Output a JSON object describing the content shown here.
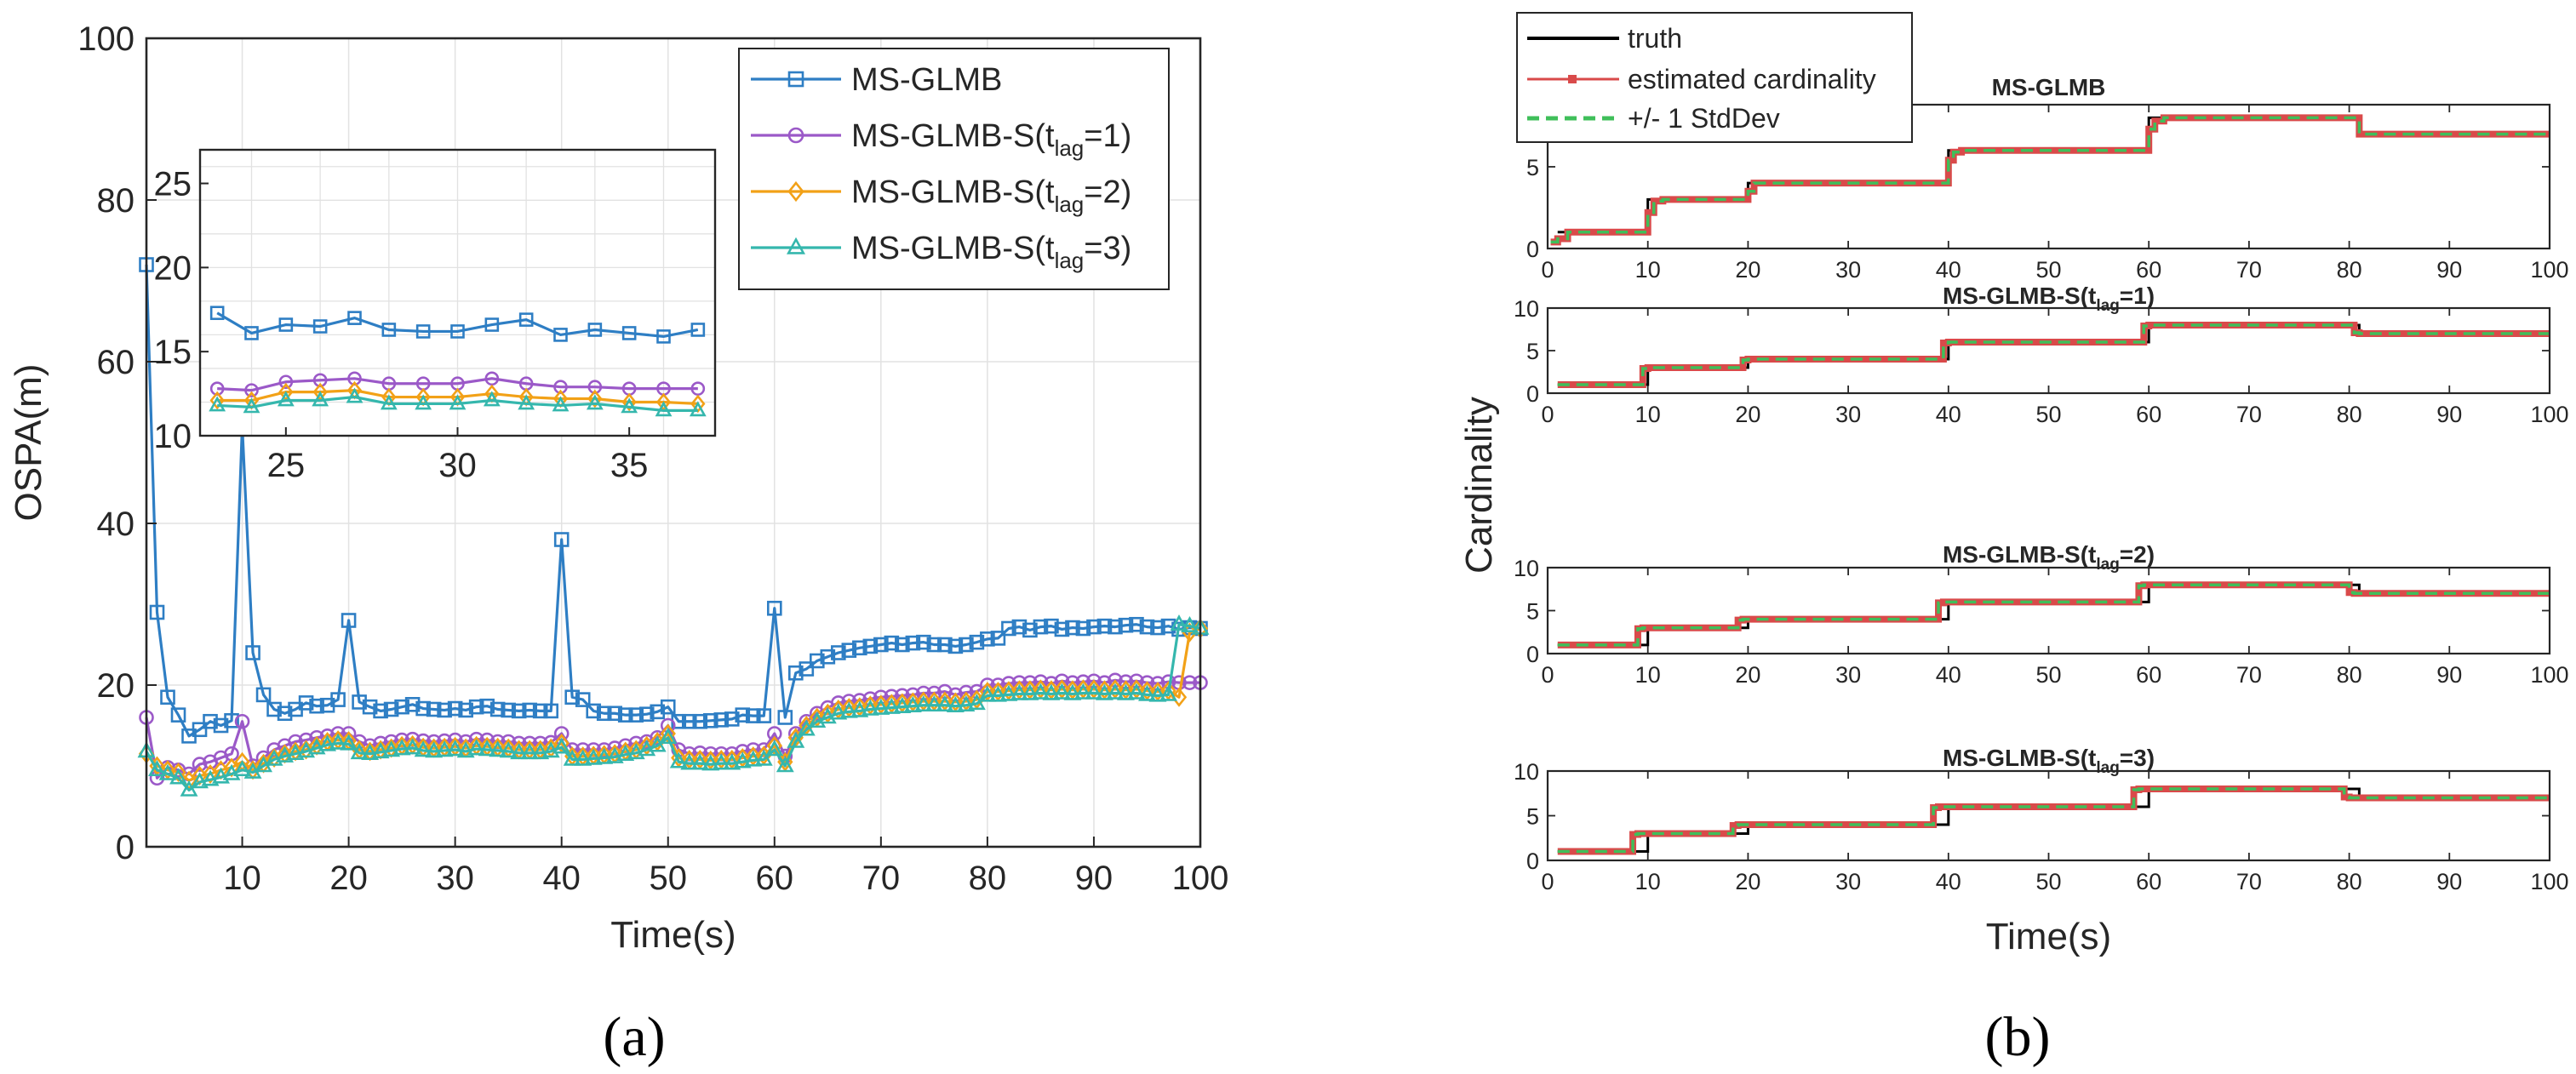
{
  "panel_labels": {
    "a": "(a)",
    "b": "(b)"
  },
  "colors": {
    "ms_glmb": "#2e7ec4",
    "s1": "#9b59c8",
    "s2": "#f2a117",
    "s3": "#35b7ad",
    "truth": "#000000",
    "estimate": "#d94a4a",
    "stddev": "#3fbf5a",
    "grid": "#e2e2e2",
    "axis": "#262626"
  },
  "chart_data": [
    {
      "id": "a-main",
      "type": "line",
      "xlabel": "Time(s)",
      "ylabel": "OSPA(m)",
      "xlim": [
        1,
        100
      ],
      "ylim": [
        0,
        100
      ],
      "xticks": [
        10,
        20,
        30,
        40,
        50,
        60,
        70,
        80,
        90,
        100
      ],
      "yticks": [
        0,
        20,
        40,
        60,
        80,
        100
      ],
      "grid": true,
      "legend_position": "top-right",
      "legend": [
        {
          "main": "MS-GLMB",
          "sub": "",
          "tail": ""
        },
        {
          "main": "MS-GLMB-S(t",
          "sub": "lag",
          "tail": "=1)"
        },
        {
          "main": "MS-GLMB-S(t",
          "sub": "lag",
          "tail": "=2)"
        },
        {
          "main": "MS-GLMB-S(t",
          "sub": "lag",
          "tail": "=3)"
        }
      ],
      "x": [
        1,
        2,
        3,
        4,
        5,
        6,
        7,
        8,
        9,
        10,
        11,
        12,
        13,
        14,
        15,
        16,
        17,
        18,
        19,
        20,
        21,
        22,
        23,
        24,
        25,
        26,
        27,
        28,
        29,
        30,
        31,
        32,
        33,
        34,
        35,
        36,
        37,
        38,
        39,
        40,
        41,
        42,
        43,
        44,
        45,
        46,
        47,
        48,
        49,
        50,
        51,
        52,
        53,
        54,
        55,
        56,
        57,
        58,
        59,
        60,
        61,
        62,
        63,
        64,
        65,
        66,
        67,
        68,
        69,
        70,
        71,
        72,
        73,
        74,
        75,
        76,
        77,
        78,
        79,
        80,
        81,
        82,
        83,
        84,
        85,
        86,
        87,
        88,
        89,
        90,
        91,
        92,
        93,
        94,
        95,
        96,
        97,
        98,
        99,
        100
      ],
      "series": [
        {
          "key": "ms_glmb",
          "marker": "square",
          "values": [
            72,
            29,
            18.5,
            16.3,
            13.7,
            14.5,
            15.5,
            15,
            15.6,
            52,
            24,
            18.8,
            17,
            16.5,
            17,
            17.8,
            17.4,
            17.5,
            18.2,
            28,
            17.9,
            17.3,
            16.8,
            17,
            17.3,
            17.6,
            17.1,
            17,
            16.9,
            17.1,
            16.9,
            17.3,
            17.4,
            17,
            16.9,
            16.8,
            16.9,
            16.8,
            16.8,
            38,
            18.5,
            18.2,
            16.8,
            16.5,
            16.5,
            16.3,
            16.3,
            16.4,
            16.7,
            17.3,
            15.5,
            15.5,
            15.5,
            15.6,
            15.7,
            15.8,
            16.3,
            16.2,
            16.2,
            29.5,
            16,
            21.5,
            22,
            23,
            23.5,
            24,
            24.3,
            24.6,
            24.8,
            25,
            25.2,
            25,
            25.2,
            25.3,
            25,
            25,
            24.8,
            25,
            25.3,
            25.7,
            25.8,
            27,
            27.2,
            26.8,
            27.2,
            27.3,
            26.9,
            27.1,
            27,
            27.2,
            27.3,
            27.2,
            27.4,
            27.5,
            27.2,
            27.1,
            27.3,
            26.9,
            27.1,
            27
          ]
        },
        {
          "key": "s1",
          "marker": "circle",
          "values": [
            16,
            8.5,
            9.8,
            9.5,
            9,
            10.2,
            10.5,
            11,
            11.5,
            15.5,
            10,
            11,
            12,
            12.5,
            13,
            13.2,
            13.5,
            13.7,
            14,
            14,
            13,
            12.5,
            12.8,
            13,
            13.2,
            13.3,
            13.1,
            13,
            13.1,
            13.2,
            13,
            13.3,
            13.2,
            13,
            13,
            12.8,
            12.8,
            12.8,
            12.9,
            14,
            12,
            12,
            12,
            12,
            12.2,
            12.5,
            12.8,
            13,
            13.5,
            15,
            12,
            11.5,
            11.6,
            11.5,
            11.5,
            11.5,
            11.8,
            12,
            12,
            14,
            11.2,
            14,
            15.5,
            16.5,
            17.2,
            17.8,
            18,
            18.1,
            18.3,
            18.5,
            18.6,
            18.7,
            18.8,
            19,
            19,
            19.2,
            18.8,
            19.1,
            19.2,
            20,
            20,
            20.2,
            20.3,
            20.3,
            20.4,
            20.2,
            20.5,
            20.3,
            20.4,
            20.5,
            20.3,
            20.6,
            20.4,
            20.5,
            20.3,
            20.2,
            20.4,
            20.3,
            20.3,
            20.3
          ]
        },
        {
          "key": "s2",
          "marker": "diamond",
          "values": [
            11.5,
            10,
            9.5,
            9.2,
            8.2,
            8.8,
            9,
            9.5,
            9.8,
            10.5,
            9.5,
            10.3,
            11,
            11.5,
            11.8,
            12,
            12.5,
            13,
            13.2,
            13.1,
            12,
            11.8,
            12,
            12.2,
            12.5,
            12.6,
            12.3,
            12.2,
            12.3,
            12.4,
            12.2,
            12.5,
            12.4,
            12.3,
            12.2,
            12,
            12,
            12,
            12.2,
            12.8,
            11.2,
            11.2,
            11.3,
            11.4,
            11.5,
            11.8,
            12,
            12.5,
            13,
            14,
            11,
            10.8,
            10.8,
            10.7,
            10.8,
            10.8,
            11,
            11.2,
            11.3,
            12.5,
            10.5,
            13.5,
            15,
            16,
            16.5,
            17,
            17.2,
            17.3,
            17.5,
            17.6,
            17.7,
            17.8,
            17.9,
            18,
            18,
            18,
            17.9,
            18,
            18.2,
            19.2,
            19.2,
            19.3,
            19.4,
            19.4,
            19.5,
            19.4,
            19.5,
            19.4,
            19.5,
            19.5,
            19.4,
            19.5,
            19.4,
            19.5,
            19.3,
            19.2,
            19.3,
            18.5,
            26.5,
            27
          ]
        },
        {
          "key": "s3",
          "marker": "triangle",
          "values": [
            11.8,
            9.5,
            9,
            8.5,
            7,
            8,
            8.3,
            8.6,
            9,
            9.5,
            9.2,
            10,
            10.8,
            11.2,
            11.5,
            11.8,
            12.2,
            12.6,
            12.8,
            12.7,
            11.6,
            11.5,
            11.7,
            11.9,
            12.1,
            12.2,
            11.9,
            11.8,
            11.9,
            12,
            11.8,
            12.1,
            12,
            11.9,
            11.8,
            11.6,
            11.6,
            11.6,
            11.8,
            12.3,
            10.8,
            10.8,
            10.9,
            11,
            11.1,
            11.4,
            11.6,
            12,
            12.5,
            13.5,
            10.5,
            10.3,
            10.3,
            10.2,
            10.3,
            10.3,
            10.5,
            10.7,
            10.8,
            12,
            10,
            13,
            14.5,
            15.5,
            16,
            16.5,
            16.7,
            16.8,
            17,
            17.1,
            17.2,
            17.3,
            17.4,
            17.5,
            17.5,
            17.5,
            17.4,
            17.5,
            17.7,
            18.7,
            18.7,
            18.8,
            18.9,
            18.9,
            19,
            18.9,
            19,
            18.9,
            19,
            19,
            18.9,
            19,
            18.9,
            19,
            18.8,
            18.7,
            18.8,
            27.5,
            27.3,
            27
          ]
        }
      ]
    },
    {
      "id": "a-inset",
      "type": "line",
      "xlim": [
        22.5,
        37.5
      ],
      "ylim": [
        10,
        27
      ],
      "xticks": [
        25,
        30,
        35
      ],
      "yticks": [
        10,
        15,
        20,
        25
      ],
      "grid": true,
      "x": [
        23,
        24,
        25,
        26,
        27,
        28,
        29,
        30,
        31,
        32,
        33,
        34,
        35,
        36,
        37
      ],
      "series": [
        {
          "key": "ms_glmb",
          "marker": "square",
          "values": [
            17.3,
            16.1,
            16.6,
            16.5,
            17,
            16.3,
            16.2,
            16.2,
            16.6,
            16.9,
            16,
            16.3,
            16.1,
            15.9,
            16.3
          ]
        },
        {
          "key": "s1",
          "marker": "circle",
          "values": [
            12.8,
            12.7,
            13.2,
            13.3,
            13.4,
            13.1,
            13.1,
            13.1,
            13.4,
            13.1,
            12.9,
            12.9,
            12.8,
            12.8,
            12.8
          ]
        },
        {
          "key": "s2",
          "marker": "diamond",
          "values": [
            12.1,
            12.1,
            12.6,
            12.6,
            12.7,
            12.3,
            12.3,
            12.3,
            12.5,
            12.3,
            12.2,
            12.2,
            12,
            12,
            11.9
          ]
        },
        {
          "key": "s3",
          "marker": "triangle",
          "values": [
            11.8,
            11.7,
            12.1,
            12.1,
            12.3,
            11.9,
            11.9,
            11.9,
            12.1,
            11.9,
            11.8,
            11.9,
            11.7,
            11.5,
            11.5
          ]
        }
      ]
    },
    {
      "id": "b-cardinality",
      "type": "line",
      "xlabel": "Time(s)",
      "ylabel": "Cardinality",
      "xlim": [
        0,
        100
      ],
      "ylim": [
        0,
        10
      ],
      "xticks": [
        0,
        10,
        20,
        30,
        40,
        50,
        60,
        70,
        80,
        90,
        100
      ],
      "yticks_top": [
        0,
        5
      ],
      "yticks": [
        0,
        5,
        10
      ],
      "grid": false,
      "legend_position": "top-left",
      "legend": [
        "truth",
        "estimated cardinality",
        "+/- 1 StdDev"
      ],
      "truth_steps": [
        [
          1,
          1
        ],
        [
          10,
          3
        ],
        [
          20,
          4
        ],
        [
          40,
          6
        ],
        [
          60,
          8
        ],
        [
          81,
          7
        ],
        [
          100,
          7
        ]
      ],
      "subplots": [
        {
          "title_main": "MS-GLMB",
          "title_sub": "",
          "title_tail": "",
          "estimate_steps": [
            [
              0.3,
              0.4
            ],
            [
              1,
              0.6
            ],
            [
              2,
              1
            ],
            [
              10,
              2.2
            ],
            [
              10.6,
              2.9
            ],
            [
              11.5,
              3
            ],
            [
              20,
              3.5
            ],
            [
              20.6,
              4
            ],
            [
              40,
              5.4
            ],
            [
              40.5,
              5.9
            ],
            [
              41.3,
              6
            ],
            [
              60,
              7.3
            ],
            [
              60.6,
              7.8
            ],
            [
              61.5,
              8
            ],
            [
              81,
              7
            ],
            [
              100,
              7
            ]
          ]
        },
        {
          "title_main": "MS-GLMB-S(t",
          "title_sub": "lag",
          "title_tail": "=1)",
          "estimate_steps": [
            [
              1,
              1
            ],
            [
              9.5,
              2.9
            ],
            [
              10,
              3
            ],
            [
              19.5,
              3.9
            ],
            [
              20,
              4
            ],
            [
              39.5,
              5.9
            ],
            [
              40,
              6
            ],
            [
              59.5,
              7.9
            ],
            [
              60,
              8
            ],
            [
              80.5,
              7.1
            ],
            [
              81,
              7
            ],
            [
              100,
              7
            ]
          ]
        },
        {
          "title_main": "MS-GLMB-S(t",
          "title_sub": "lag",
          "title_tail": "=2)",
          "estimate_steps": [
            [
              1,
              1
            ],
            [
              9,
              2.9
            ],
            [
              9.5,
              3
            ],
            [
              19,
              3.9
            ],
            [
              19.5,
              4
            ],
            [
              39,
              5.9
            ],
            [
              39.5,
              6
            ],
            [
              59,
              7.9
            ],
            [
              59.5,
              8
            ],
            [
              80,
              7.1
            ],
            [
              80.5,
              7
            ],
            [
              100,
              7
            ]
          ]
        },
        {
          "title_main": "MS-GLMB-S(t",
          "title_sub": "lag",
          "title_tail": "=3)",
          "estimate_steps": [
            [
              1,
              1
            ],
            [
              8.5,
              2.9
            ],
            [
              9,
              3
            ],
            [
              18.5,
              3.9
            ],
            [
              19,
              4
            ],
            [
              38.5,
              5.9
            ],
            [
              39,
              6
            ],
            [
              58.5,
              7.9
            ],
            [
              59,
              8
            ],
            [
              79.5,
              7.1
            ],
            [
              80,
              7
            ],
            [
              100,
              7
            ]
          ]
        }
      ]
    }
  ]
}
